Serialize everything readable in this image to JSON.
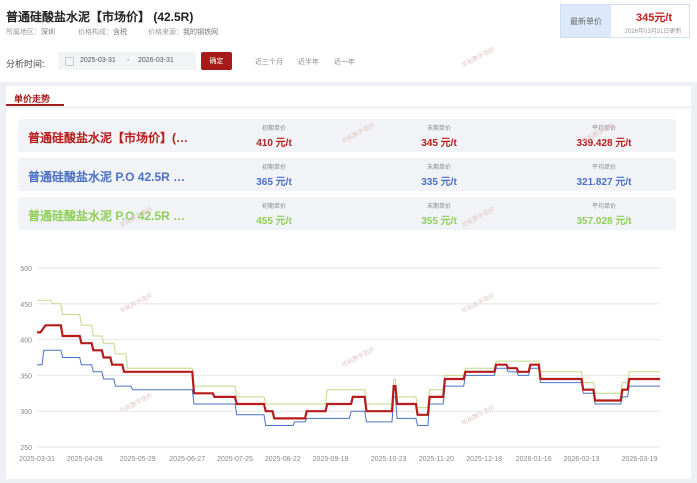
{
  "header": {
    "title": "普通硅酸盐水泥【市场价】 (42.5R)",
    "region_label": "所属地区：",
    "region_value": "深圳",
    "price_type_label": "价格构成：",
    "price_type_value": "含税",
    "source_label": "价格来源：",
    "source_value": "我的钢铁网"
  },
  "latest": {
    "label": "最新单价",
    "value": "345元/t",
    "updated": "2026年03月31日更新"
  },
  "filter": {
    "label": "分析时间:",
    "start_date": "2025-03-31",
    "separator": "-",
    "end_date": "2026-03-31",
    "confirm_label": "确定",
    "quick_options": [
      "近三个月",
      "近半年",
      "近一年"
    ]
  },
  "tab": {
    "label": "单价走势"
  },
  "summary_rows": [
    {
      "name": "普通硅酸盐水泥【市场价】(…",
      "color": "#b71c1c",
      "start_label": "初期单价",
      "start_value": "410 元/t",
      "end_label": "末期单价",
      "end_value": "345 元/t",
      "avg_label": "平均单价",
      "avg_value": "339.428 元/t"
    },
    {
      "name": "普通硅酸盐水泥 P.O 42.5R …",
      "color": "#4a72c4",
      "start_label": "初期单价",
      "start_value": "365 元/t",
      "end_label": "末期单价",
      "end_value": "335 元/t",
      "avg_label": "平均单价",
      "avg_value": "321.827 元/t"
    },
    {
      "name": "普通硅酸盐水泥 P.O 42.5R …",
      "color": "#8fcf5a",
      "start_label": "初期单价",
      "start_value": "455 元/t",
      "end_label": "末期单价",
      "end_value": "355 元/t",
      "avg_label": "平均单价",
      "avg_value": "357.028 元/t"
    }
  ],
  "watermark": "华拓数字造价",
  "chart_data": {
    "type": "line",
    "ylim": [
      250,
      500
    ],
    "yticks": [
      250,
      300,
      350,
      400,
      450,
      500
    ],
    "xlim": [
      "2025-03-31",
      "2026-03-31"
    ],
    "x_tick_labels": [
      "2025-03-31",
      "2025-04-28",
      "2025-05-29",
      "2025-06-27",
      "2025-07-25",
      "2025-08-22",
      "2025-09-19",
      "2025-10-23",
      "2025-11-20",
      "2025-12-18",
      "2026-01-16",
      "2026-02-13",
      "2026-03-19"
    ],
    "grid": true,
    "series": [
      {
        "color": "#b71c1c",
        "points": [
          [
            "2025-03-31",
            410
          ],
          [
            "2025-04-02",
            410
          ],
          [
            "2025-04-05",
            420
          ],
          [
            "2025-04-14",
            420
          ],
          [
            "2025-04-15",
            405
          ],
          [
            "2025-04-25",
            405
          ],
          [
            "2025-04-26",
            395
          ],
          [
            "2025-05-02",
            395
          ],
          [
            "2025-05-03",
            385
          ],
          [
            "2025-05-08",
            385
          ],
          [
            "2025-05-09",
            375
          ],
          [
            "2025-05-13",
            375
          ],
          [
            "2025-05-14",
            365
          ],
          [
            "2025-05-20",
            365
          ],
          [
            "2025-05-21",
            355
          ],
          [
            "2025-06-30",
            355
          ],
          [
            "2025-07-01",
            325
          ],
          [
            "2025-07-12",
            325
          ],
          [
            "2025-07-13",
            320
          ],
          [
            "2025-07-25",
            320
          ],
          [
            "2025-07-26",
            310
          ],
          [
            "2025-08-11",
            310
          ],
          [
            "2025-08-12",
            300
          ],
          [
            "2025-08-16",
            300
          ],
          [
            "2025-08-17",
            290
          ],
          [
            "2025-09-04",
            290
          ],
          [
            "2025-09-05",
            300
          ],
          [
            "2025-09-16",
            300
          ],
          [
            "2025-09-17",
            310
          ],
          [
            "2025-10-01",
            310
          ],
          [
            "2025-10-02",
            320
          ],
          [
            "2025-10-09",
            320
          ],
          [
            "2025-10-10",
            300
          ],
          [
            "2025-10-25",
            300
          ],
          [
            "2025-10-26",
            335
          ],
          [
            "2025-10-27",
            335
          ],
          [
            "2025-10-28",
            310
          ],
          [
            "2025-11-08",
            310
          ],
          [
            "2025-11-09",
            295
          ],
          [
            "2025-11-15",
            295
          ],
          [
            "2025-11-16",
            320
          ],
          [
            "2025-11-24",
            320
          ],
          [
            "2025-11-25",
            345
          ],
          [
            "2025-12-06",
            345
          ],
          [
            "2025-12-07",
            355
          ],
          [
            "2025-12-24",
            355
          ],
          [
            "2025-12-25",
            365
          ],
          [
            "2025-12-31",
            365
          ],
          [
            "2026-01-01",
            360
          ],
          [
            "2026-01-06",
            360
          ],
          [
            "2026-01-07",
            355
          ],
          [
            "2026-01-13",
            355
          ],
          [
            "2026-01-14",
            365
          ],
          [
            "2026-01-19",
            365
          ],
          [
            "2026-01-20",
            345
          ],
          [
            "2026-02-13",
            345
          ],
          [
            "2026-02-14",
            330
          ],
          [
            "2026-02-20",
            330
          ],
          [
            "2026-02-21",
            315
          ],
          [
            "2026-03-08",
            315
          ],
          [
            "2026-03-09",
            330
          ],
          [
            "2026-03-12",
            330
          ],
          [
            "2026-03-13",
            345
          ],
          [
            "2026-03-31",
            345
          ]
        ]
      },
      {
        "color": "#4a72c4",
        "points": [
          [
            "2025-03-31",
            365
          ],
          [
            "2025-04-03",
            365
          ],
          [
            "2025-04-04",
            385
          ],
          [
            "2025-04-14",
            385
          ],
          [
            "2025-04-15",
            375
          ],
          [
            "2025-04-25",
            375
          ],
          [
            "2025-04-26",
            365
          ],
          [
            "2025-05-02",
            365
          ],
          [
            "2025-05-03",
            355
          ],
          [
            "2025-05-08",
            355
          ],
          [
            "2025-05-09",
            345
          ],
          [
            "2025-05-15",
            345
          ],
          [
            "2025-05-16",
            335
          ],
          [
            "2025-05-25",
            335
          ],
          [
            "2025-05-26",
            330
          ],
          [
            "2025-06-30",
            330
          ],
          [
            "2025-07-01",
            310
          ],
          [
            "2025-07-25",
            310
          ],
          [
            "2025-07-26",
            295
          ],
          [
            "2025-08-11",
            295
          ],
          [
            "2025-08-12",
            280
          ],
          [
            "2025-08-28",
            280
          ],
          [
            "2025-08-29",
            285
          ],
          [
            "2025-09-04",
            285
          ],
          [
            "2025-09-05",
            290
          ],
          [
            "2025-09-30",
            290
          ],
          [
            "2025-10-01",
            300
          ],
          [
            "2025-10-09",
            300
          ],
          [
            "2025-10-10",
            285
          ],
          [
            "2025-10-25",
            285
          ],
          [
            "2025-10-26",
            320
          ],
          [
            "2025-10-27",
            320
          ],
          [
            "2025-10-28",
            290
          ],
          [
            "2025-11-08",
            290
          ],
          [
            "2025-11-09",
            280
          ],
          [
            "2025-11-15",
            280
          ],
          [
            "2025-11-16",
            310
          ],
          [
            "2025-11-24",
            310
          ],
          [
            "2025-11-25",
            335
          ],
          [
            "2025-12-06",
            335
          ],
          [
            "2025-12-07",
            350
          ],
          [
            "2025-12-24",
            350
          ],
          [
            "2025-12-25",
            360
          ],
          [
            "2025-12-31",
            360
          ],
          [
            "2026-01-01",
            355
          ],
          [
            "2026-01-06",
            355
          ],
          [
            "2026-01-07",
            350
          ],
          [
            "2026-01-13",
            350
          ],
          [
            "2026-01-14",
            360
          ],
          [
            "2026-01-19",
            360
          ],
          [
            "2026-01-20",
            340
          ],
          [
            "2026-02-13",
            340
          ],
          [
            "2026-02-14",
            325
          ],
          [
            "2026-02-20",
            325
          ],
          [
            "2026-02-21",
            310
          ],
          [
            "2026-03-08",
            310
          ],
          [
            "2026-03-09",
            320
          ],
          [
            "2026-03-12",
            320
          ],
          [
            "2026-03-13",
            335
          ],
          [
            "2026-03-31",
            335
          ]
        ]
      },
      {
        "color": "#c3d98a",
        "points": [
          [
            "2025-03-31",
            455
          ],
          [
            "2025-04-08",
            455
          ],
          [
            "2025-04-09",
            450
          ],
          [
            "2025-04-14",
            450
          ],
          [
            "2025-04-15",
            435
          ],
          [
            "2025-04-25",
            435
          ],
          [
            "2025-04-26",
            420
          ],
          [
            "2025-05-02",
            420
          ],
          [
            "2025-05-03",
            405
          ],
          [
            "2025-05-08",
            405
          ],
          [
            "2025-05-09",
            395
          ],
          [
            "2025-05-15",
            395
          ],
          [
            "2025-05-16",
            380
          ],
          [
            "2025-05-22",
            380
          ],
          [
            "2025-05-23",
            360
          ],
          [
            "2025-06-30",
            360
          ],
          [
            "2025-07-01",
            335
          ],
          [
            "2025-07-25",
            335
          ],
          [
            "2025-07-26",
            320
          ],
          [
            "2025-08-11",
            320
          ],
          [
            "2025-08-12",
            310
          ],
          [
            "2025-09-16",
            310
          ],
          [
            "2025-09-17",
            330
          ],
          [
            "2025-10-09",
            330
          ],
          [
            "2025-10-10",
            310
          ],
          [
            "2025-10-25",
            310
          ],
          [
            "2025-10-26",
            345
          ],
          [
            "2025-10-27",
            345
          ],
          [
            "2025-10-28",
            320
          ],
          [
            "2025-11-08",
            320
          ],
          [
            "2025-11-09",
            305
          ],
          [
            "2025-11-15",
            305
          ],
          [
            "2025-11-16",
            330
          ],
          [
            "2025-11-24",
            330
          ],
          [
            "2025-11-25",
            350
          ],
          [
            "2025-12-06",
            350
          ],
          [
            "2025-12-07",
            360
          ],
          [
            "2025-12-24",
            360
          ],
          [
            "2025-12-25",
            370
          ],
          [
            "2026-01-19",
            370
          ],
          [
            "2026-01-20",
            355
          ],
          [
            "2026-02-13",
            355
          ],
          [
            "2026-02-14",
            340
          ],
          [
            "2026-02-20",
            340
          ],
          [
            "2026-02-21",
            325
          ],
          [
            "2026-03-08",
            325
          ],
          [
            "2026-03-09",
            340
          ],
          [
            "2026-03-12",
            340
          ],
          [
            "2026-03-13",
            355
          ],
          [
            "2026-03-31",
            355
          ]
        ]
      }
    ]
  }
}
